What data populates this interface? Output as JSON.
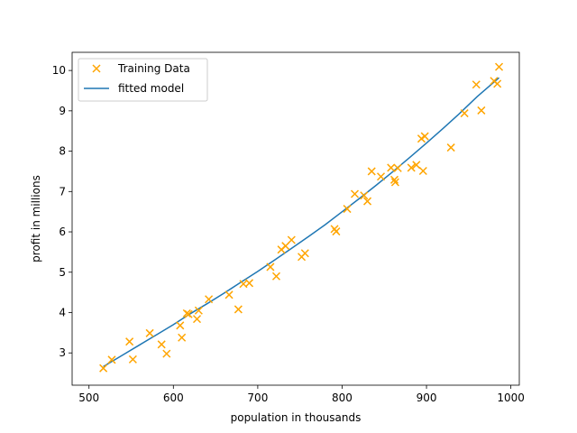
{
  "chart_data": {
    "type": "scatter",
    "title": "",
    "xlabel": "population in thousands",
    "ylabel": "profit in millions",
    "xlim": [
      480,
      1010
    ],
    "ylim": [
      2.2,
      10.45
    ],
    "xticks": [
      500,
      600,
      700,
      800,
      900,
      1000
    ],
    "yticks": [
      3,
      4,
      5,
      6,
      7,
      8,
      9,
      10
    ],
    "grid": false,
    "legend_position": "upper-left",
    "series": [
      {
        "name": "Training Data",
        "kind": "scatter",
        "marker": "x",
        "color": "#ffa500",
        "points": [
          [
            517,
            2.62
          ],
          [
            527,
            2.83
          ],
          [
            548,
            3.28
          ],
          [
            552,
            2.84
          ],
          [
            572,
            3.49
          ],
          [
            586,
            3.21
          ],
          [
            592,
            2.98
          ],
          [
            608,
            3.68
          ],
          [
            610,
            3.38
          ],
          [
            616,
            3.98
          ],
          [
            618,
            3.96
          ],
          [
            628,
            3.84
          ],
          [
            630,
            4.05
          ],
          [
            642,
            4.33
          ],
          [
            666,
            4.44
          ],
          [
            677,
            4.08
          ],
          [
            683,
            4.71
          ],
          [
            690,
            4.73
          ],
          [
            715,
            5.13
          ],
          [
            722,
            4.9
          ],
          [
            728,
            5.56
          ],
          [
            733,
            5.65
          ],
          [
            740,
            5.8
          ],
          [
            752,
            5.38
          ],
          [
            756,
            5.47
          ],
          [
            791,
            6.07
          ],
          [
            793,
            6.01
          ],
          [
            806,
            6.57
          ],
          [
            815,
            6.94
          ],
          [
            826,
            6.9
          ],
          [
            830,
            6.76
          ],
          [
            835,
            7.5
          ],
          [
            846,
            7.37
          ],
          [
            858,
            7.59
          ],
          [
            862,
            7.29
          ],
          [
            863,
            7.23
          ],
          [
            866,
            7.58
          ],
          [
            882,
            7.59
          ],
          [
            888,
            7.66
          ],
          [
            894,
            8.31
          ],
          [
            896,
            7.51
          ],
          [
            898,
            8.37
          ],
          [
            929,
            8.09
          ],
          [
            945,
            8.94
          ],
          [
            959,
            9.65
          ],
          [
            965,
            9.01
          ],
          [
            980,
            9.74
          ],
          [
            984,
            9.67
          ],
          [
            986,
            10.09
          ]
        ]
      },
      {
        "name": "fitted model",
        "kind": "line",
        "color": "#1f77b4",
        "points": [
          [
            517,
            2.66
          ],
          [
            540,
            2.95
          ],
          [
            560,
            3.2
          ],
          [
            580,
            3.45
          ],
          [
            600,
            3.7
          ],
          [
            620,
            3.97
          ],
          [
            640,
            4.22
          ],
          [
            660,
            4.48
          ],
          [
            680,
            4.75
          ],
          [
            700,
            5.02
          ],
          [
            720,
            5.3
          ],
          [
            740,
            5.59
          ],
          [
            760,
            5.88
          ],
          [
            780,
            6.18
          ],
          [
            800,
            6.5
          ],
          [
            820,
            6.82
          ],
          [
            840,
            7.15
          ],
          [
            860,
            7.49
          ],
          [
            880,
            7.84
          ],
          [
            900,
            8.2
          ],
          [
            920,
            8.57
          ],
          [
            940,
            8.95
          ],
          [
            960,
            9.35
          ],
          [
            986,
            9.82
          ]
        ]
      }
    ]
  }
}
